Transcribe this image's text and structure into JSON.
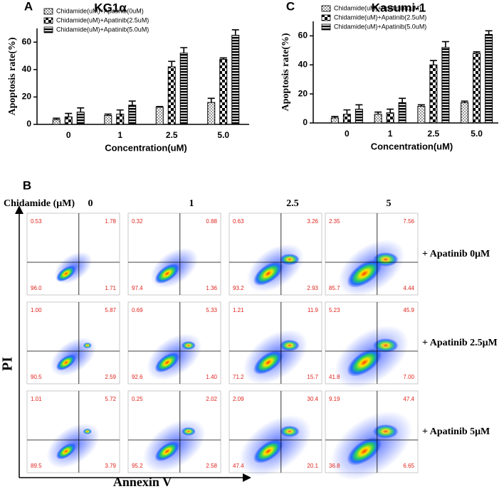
{
  "chart_data": [
    {
      "type": "bar",
      "panel_label": "A",
      "title": "KG1α",
      "ylabel": "Apoptosis rate(%)",
      "xlabel": "Concentration(uM)",
      "categories": [
        "0",
        "1",
        "2.5",
        "5.0"
      ],
      "series": [
        {
          "name": "Chidamide(uM)+Apatinib(0uM)",
          "color": "#000000",
          "pattern": "dots",
          "values": [
            3.5,
            6.5,
            12.5,
            16
          ],
          "errors": [
            1,
            1,
            0.5,
            3
          ]
        },
        {
          "name": "Chidamide(uM)+Apatinib(2.5uM)",
          "color": "#000000",
          "pattern": "checker",
          "values": [
            5.5,
            7.5,
            42,
            47.5
          ],
          "errors": [
            2.5,
            3,
            4,
            1
          ]
        },
        {
          "name": "Chidamide(uM)+Apatinib(5.0uM)",
          "color": "#000000",
          "pattern": "stripes",
          "values": [
            9,
            14,
            52,
            65
          ],
          "errors": [
            3,
            3,
            4,
            4
          ]
        }
      ],
      "ylim": [
        0,
        70
      ],
      "yticks": [
        0,
        20,
        40,
        60
      ],
      "grid": false,
      "legend": "top-left"
    },
    {
      "type": "bar",
      "panel_label": "C",
      "title": "Kasumi-1",
      "ylabel": "Apoptosis rate(%)",
      "xlabel": "Concentration(uM)",
      "categories": [
        "0",
        "1",
        "2.5",
        "5.0"
      ],
      "series": [
        {
          "name": "Chidamide(uM)+Apatinib(0uM)",
          "color": "#000000",
          "pattern": "dots",
          "values": [
            3.5,
            6,
            11.5,
            14
          ],
          "errors": [
            1,
            1.5,
            1,
            1
          ]
        },
        {
          "name": "Chidamide(uM)+Apatinib(2.5uM)",
          "color": "#000000",
          "pattern": "checker",
          "values": [
            6,
            7,
            40,
            48
          ],
          "errors": [
            3,
            2.5,
            3,
            1
          ]
        },
        {
          "name": "Chidamide(uM)+Apatinib(5.0uM)",
          "color": "#000000",
          "pattern": "stripes",
          "values": [
            9.5,
            14,
            52,
            61
          ],
          "errors": [
            3,
            3,
            4,
            2.5
          ]
        }
      ],
      "ylim": [
        0,
        70
      ],
      "yticks": [
        0,
        20,
        40,
        60
      ],
      "grid": false,
      "legend": "top-left"
    }
  ],
  "panel_b": {
    "panel_label": "B",
    "column_header": "Chidamide (μM)",
    "columns": [
      "0",
      "1",
      "2.5",
      "5"
    ],
    "y_axis_label": "PI",
    "x_axis_label": "Annexin V",
    "rows": [
      {
        "label": "+ Apatinib 0μM",
        "plots": [
          [
            "0.53",
            "1.78",
            "96.0",
            "1.71"
          ],
          [
            "0.32",
            "0.88",
            "97.4",
            "1.36"
          ],
          [
            "0.63",
            "3.26",
            "93.2",
            "2.93"
          ],
          [
            "2.35",
            "7.56",
            "85.7",
            "4.44"
          ]
        ]
      },
      {
        "label": "+ Apatinib 2.5μM",
        "plots": [
          [
            "1.00",
            "5.87",
            "90.5",
            "2.59"
          ],
          [
            "0.69",
            "5.33",
            "92.6",
            "1.40"
          ],
          [
            "1.21",
            "11.9",
            "71.2",
            "15.7"
          ],
          [
            "5.23",
            "45.9",
            "41.8",
            "7.00"
          ]
        ]
      },
      {
        "label": "+ Apatinib 5μM",
        "plots": [
          [
            "1.01",
            "5.72",
            "89.5",
            "3.79"
          ],
          [
            "0.25",
            "2.02",
            "95.2",
            "2.58"
          ],
          [
            "2.09",
            "30.4",
            "47.4",
            "20.1"
          ],
          [
            "9.19",
            "47.4",
            "36.8",
            "6.65"
          ]
        ]
      }
    ]
  }
}
